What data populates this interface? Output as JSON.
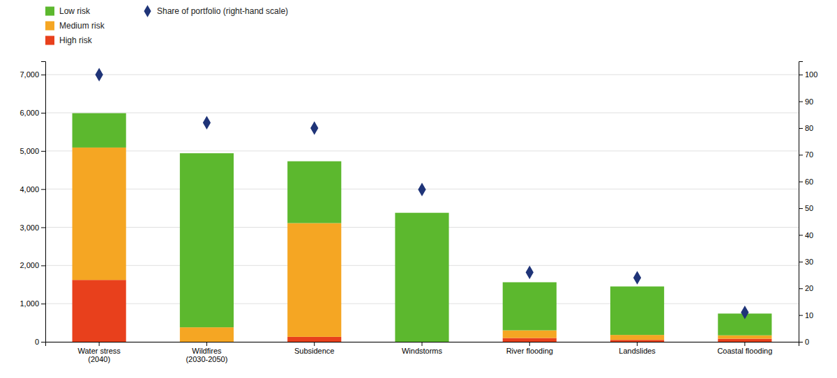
{
  "chart_data": {
    "type": "bar",
    "stacked": true,
    "categories": [
      "Water stress\n(2040)",
      "Wildfires\n(2030-2050)",
      "Subsidence",
      "Windstorms",
      "River flooding",
      "Landslides",
      "Coastal flooding"
    ],
    "series": [
      {
        "name": "High risk",
        "color": "#e8401c",
        "values": [
          1620,
          0,
          130,
          0,
          100,
          50,
          80
        ]
      },
      {
        "name": "Medium risk",
        "color": "#f5a623",
        "values": [
          3470,
          380,
          2980,
          0,
          200,
          130,
          90
        ]
      },
      {
        "name": "Low risk",
        "color": "#5cb82e",
        "values": [
          900,
          4560,
          1620,
          3380,
          1260,
          1270,
          570
        ]
      },
      {
        "name": "Share of portfolio (right-hand scale)",
        "color": "#1f3478",
        "type": "scatter",
        "marker": "diamond",
        "axis": "y2",
        "values": [
          100,
          82,
          80,
          57,
          26,
          24,
          11
        ]
      }
    ],
    "ylim": [
      0,
      7350
    ],
    "yticks": [
      0,
      {
        "value": 1000,
        "label": "1,000"
      },
      {
        "value": 2000,
        "label": "2,000"
      },
      {
        "value": 3000,
        "label": "3,000"
      },
      {
        "value": 4000,
        "label": "4,000"
      },
      {
        "value": 5000,
        "label": "5,000"
      },
      {
        "value": 6000,
        "label": "6,000"
      },
      {
        "value": 7000,
        "label": "7,000"
      }
    ],
    "y2lim": [
      0,
      105
    ],
    "y2ticks": [
      0,
      10,
      20,
      30,
      40,
      50,
      60,
      70,
      80,
      90,
      100
    ],
    "grid": true,
    "legend": "upper left"
  }
}
